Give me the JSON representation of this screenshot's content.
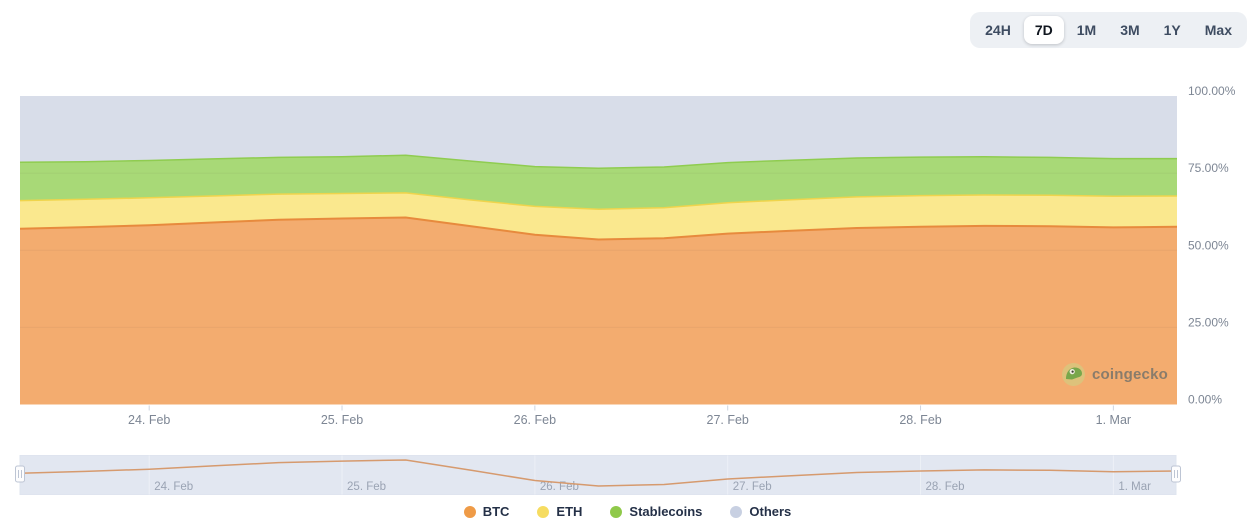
{
  "time_range_selector": {
    "options": [
      "24H",
      "7D",
      "1M",
      "3M",
      "1Y",
      "Max"
    ],
    "active": "7D"
  },
  "watermark": {
    "text": "coingecko"
  },
  "chart_data": {
    "type": "area",
    "stacking": "percent",
    "title": "",
    "xlabel": "",
    "ylabel": "",
    "ylim": [
      0,
      100
    ],
    "x_range": [
      23.33,
      29.33
    ],
    "legend_position": "bottom",
    "grid": true,
    "x_days": [
      23.33,
      23.67,
      24.0,
      24.33,
      24.67,
      25.0,
      25.33,
      25.67,
      26.0,
      26.33,
      26.67,
      27.0,
      27.33,
      27.67,
      28.0,
      28.33,
      28.67,
      29.0,
      29.33
    ],
    "x_ticks": [
      {
        "day": 24,
        "label": "24. Feb"
      },
      {
        "day": 25,
        "label": "25. Feb"
      },
      {
        "day": 26,
        "label": "26. Feb"
      },
      {
        "day": 27,
        "label": "27. Feb"
      },
      {
        "day": 28,
        "label": "28. Feb"
      },
      {
        "day": 29,
        "label": "1. Mar"
      }
    ],
    "y_ticks": [
      {
        "value": 0,
        "label": "0.00%"
      },
      {
        "value": 25,
        "label": "25.00%"
      },
      {
        "value": 50,
        "label": "50.00%"
      },
      {
        "value": 75,
        "label": "75.00%"
      },
      {
        "value": 100,
        "label": "100.00%"
      }
    ],
    "series": [
      {
        "name": "BTC",
        "dot": "#EF9B47",
        "line": "#E78A3D",
        "area": "#F3AC6F",
        "line_width": 2,
        "values": [
          57.0,
          57.5,
          58.1,
          59.0,
          59.9,
          60.3,
          60.6,
          57.8,
          55.0,
          53.5,
          53.9,
          55.4,
          56.3,
          57.2,
          57.6,
          57.9,
          57.8,
          57.4,
          57.6
        ]
      },
      {
        "name": "ETH",
        "dot": "#F6DC61",
        "line": "#EFD44C",
        "area": "#FAE88E",
        "line_width": 1.5,
        "values": [
          9.1,
          9.0,
          8.9,
          8.6,
          8.3,
          8.1,
          8.0,
          8.5,
          9.2,
          9.8,
          9.9,
          10.0,
          10.1,
          10.1,
          10.1,
          10.0,
          10.0,
          10.1,
          10.0
        ]
      },
      {
        "name": "Stablecoins",
        "dot": "#8FC94A",
        "line": "#8FCC50",
        "area": "#A8D977",
        "line_width": 1.5,
        "values": [
          12.4,
          12.2,
          12.1,
          12.0,
          11.9,
          11.9,
          12.2,
          12.6,
          12.9,
          13.3,
          13.2,
          13.0,
          12.8,
          12.6,
          12.5,
          12.4,
          12.3,
          12.2,
          12.1
        ]
      },
      {
        "name": "Others",
        "dot": "#C8D0E2",
        "line": null,
        "area": "#D8DDE9",
        "line_width": 0,
        "values": [
          21.5,
          21.3,
          20.9,
          20.4,
          19.9,
          19.7,
          19.2,
          21.1,
          22.9,
          23.4,
          23.0,
          21.6,
          20.8,
          20.1,
          19.8,
          19.7,
          19.9,
          20.3,
          20.3
        ]
      }
    ],
    "navigator": {
      "series": "BTC"
    }
  },
  "theme": {
    "axis_label": "#7D8694",
    "tick_mark": "#CFD5DF",
    "gridline": "rgba(30,35,45,0.05)",
    "nav_bg": "#E2E7F1",
    "nav_border": "#DFE4EF",
    "nav_grid": "#EDF0F7",
    "nav_label": "#9AA3B3",
    "nav_line": "#D69A6E",
    "handle_fill": "#FDFDFE",
    "handle_border": "#BDC5D4"
  }
}
